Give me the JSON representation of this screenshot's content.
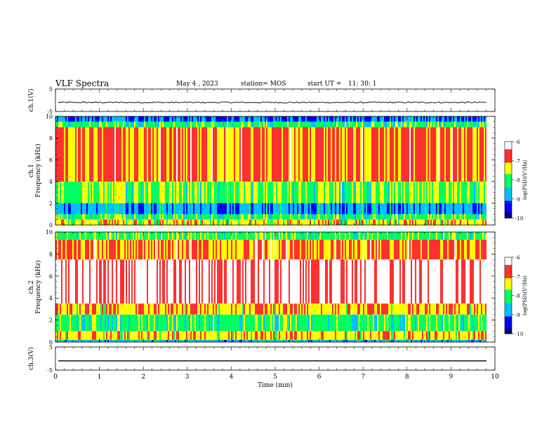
{
  "header": {
    "title": "VLF Spectra",
    "date": "May 4 , 2023",
    "station": "station= MOS",
    "start_label": "start UT =",
    "start_time": "11: 30: 1"
  },
  "colors": {
    "colormap": [
      "#000080",
      "#0000ff",
      "#00c0ff",
      "#00ff60",
      "#ffff00",
      "#ff3030",
      "#ffffff"
    ],
    "trace": "#000000"
  },
  "chart_data": [
    {
      "type": "line",
      "panel": "ch1-waveform",
      "ylabel": "ch.1(V)",
      "ylim": [
        -5,
        5
      ],
      "yticks": [
        "5",
        "-5"
      ],
      "series": [
        {
          "values_approx": "near constant about -1 V with small noise",
          "level": -1
        }
      ]
    },
    {
      "type": "heatmap",
      "panel": "ch1-spectrogram",
      "ylabel": "ch.1\nFrequency (kHz)",
      "ylim": [
        0,
        10
      ],
      "yticks": [
        "0",
        "2",
        "4",
        "6",
        "8",
        "10"
      ],
      "xlim": [
        0,
        10
      ],
      "colorbar": {
        "label": "log(PSD)(V²/Hz)",
        "range": [
          -10,
          -6
        ],
        "ticks": [
          "-6",
          "-7",
          "-8",
          "-9",
          "-10"
        ]
      },
      "bands_khz": [
        {
          "from": 9.5,
          "to": 10,
          "level": -9
        },
        {
          "from": 9.0,
          "to": 9.5,
          "level": -8
        },
        {
          "from": 4.0,
          "to": 9.0,
          "level": -6.9
        },
        {
          "from": 2.0,
          "to": 4.0,
          "level": -7.8
        },
        {
          "from": 1.0,
          "to": 2.0,
          "level": -8.8
        },
        {
          "from": 0.5,
          "to": 1.0,
          "level": -8.0
        },
        {
          "from": 0.0,
          "to": 0.5,
          "level": -7.3
        }
      ]
    },
    {
      "type": "heatmap",
      "panel": "ch2-spectrogram",
      "ylabel": "ch.2\nFrequency (kHz)",
      "ylim": [
        0,
        10
      ],
      "yticks": [
        "0",
        "2",
        "4",
        "6",
        "8",
        "10"
      ],
      "xlim": [
        0,
        10
      ],
      "colorbar": {
        "label": "log(PSD)(V²/Hz)",
        "range": [
          -10,
          -6
        ],
        "ticks": [
          "-6",
          "-7",
          "-8",
          "-9",
          "-10"
        ]
      },
      "bands_khz": [
        {
          "from": 9.3,
          "to": 10,
          "level": -7.9
        },
        {
          "from": 7.5,
          "to": 9.3,
          "level": -6.9
        },
        {
          "from": 3.5,
          "to": 7.5,
          "level": -6.2
        },
        {
          "from": 2.5,
          "to": 3.5,
          "level": -7.1
        },
        {
          "from": 1.0,
          "to": 2.5,
          "level": -8.0
        },
        {
          "from": 0.2,
          "to": 1.0,
          "level": -7.2
        },
        {
          "from": 0.0,
          "to": 0.2,
          "level": -8.6
        }
      ]
    },
    {
      "type": "line",
      "panel": "ch3-waveform",
      "ylabel": "ch.3(V)",
      "ylim": [
        -5,
        5
      ],
      "yticks": [
        "5",
        "-5"
      ],
      "series": [
        {
          "level": -1
        }
      ]
    }
  ],
  "xaxis": {
    "label": "Time (min)",
    "ticks": [
      "0",
      "1",
      "2",
      "3",
      "4",
      "5",
      "6",
      "7",
      "8",
      "9",
      "10"
    ],
    "data_end_min": 9.84
  }
}
